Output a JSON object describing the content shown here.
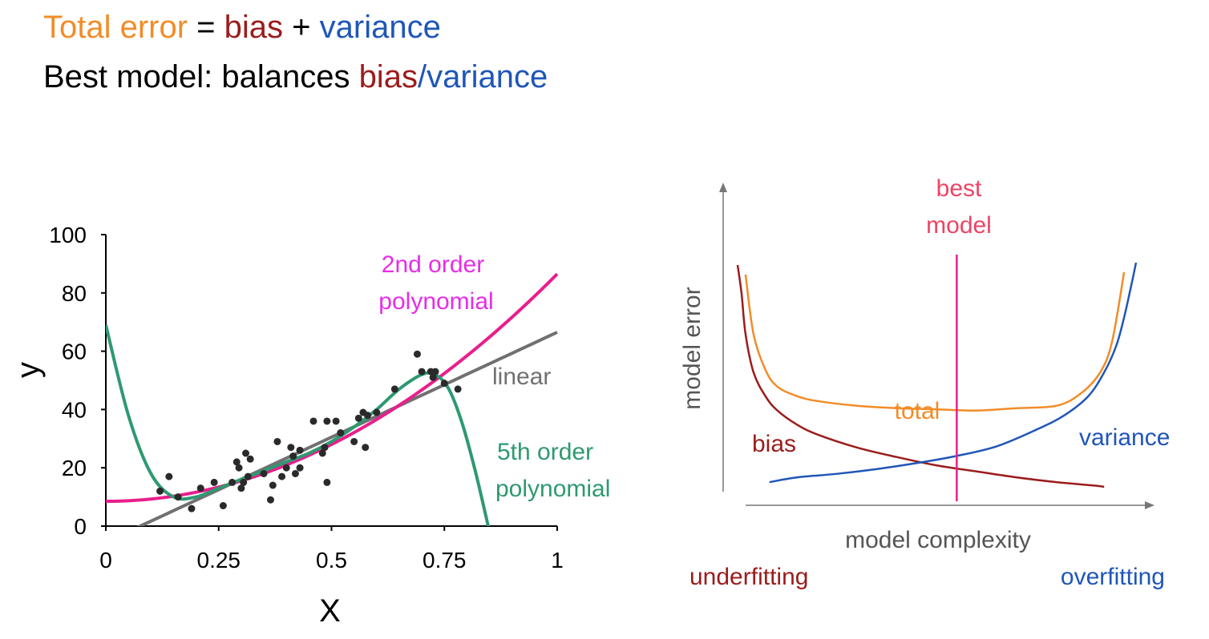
{
  "headline": {
    "line1": {
      "total": "Total error",
      "eq": " = ",
      "bias": "bias",
      "plus": " + ",
      "variance": "variance"
    },
    "line2": {
      "prefix": "Best model: balances ",
      "bias": "bias",
      "slash": "/",
      "variance": "variance"
    }
  },
  "colors": {
    "orange": "#f28c28",
    "bias": "#9b1c1c",
    "variance": "#1f56b8",
    "magenta": "#e91e8c",
    "quad_label": "#e62ee6",
    "linear": "#707070",
    "poly5": "#2e9970",
    "points": "#2a2a2a",
    "best": "#ee4466"
  },
  "chart_data": [
    {
      "type": "scatter",
      "xlabel": "X",
      "ylabel": "y",
      "xlim": [
        0,
        1
      ],
      "ylim": [
        0,
        100
      ],
      "xticks": [
        0,
        0.25,
        0.5,
        0.75,
        1
      ],
      "xtick_labels": [
        "0",
        "0.25",
        "0.5",
        "0.75",
        "1"
      ],
      "yticks": [
        0,
        20,
        40,
        60,
        80,
        100
      ],
      "ytick_labels": [
        "0",
        "20",
        "40",
        "60",
        "80",
        "100"
      ],
      "points": [
        [
          0.12,
          12
        ],
        [
          0.14,
          17
        ],
        [
          0.16,
          10
        ],
        [
          0.19,
          6
        ],
        [
          0.21,
          13
        ],
        [
          0.24,
          15
        ],
        [
          0.26,
          7
        ],
        [
          0.28,
          15
        ],
        [
          0.29,
          22
        ],
        [
          0.295,
          20
        ],
        [
          0.3,
          13
        ],
        [
          0.305,
          15
        ],
        [
          0.31,
          25
        ],
        [
          0.315,
          17
        ],
        [
          0.32,
          23
        ],
        [
          0.35,
          18
        ],
        [
          0.365,
          9
        ],
        [
          0.37,
          14
        ],
        [
          0.38,
          29
        ],
        [
          0.39,
          17
        ],
        [
          0.4,
          20
        ],
        [
          0.41,
          27
        ],
        [
          0.415,
          24
        ],
        [
          0.42,
          18
        ],
        [
          0.43,
          26
        ],
        [
          0.43,
          20
        ],
        [
          0.46,
          36
        ],
        [
          0.48,
          25
        ],
        [
          0.485,
          27
        ],
        [
          0.49,
          36
        ],
        [
          0.49,
          15
        ],
        [
          0.51,
          36
        ],
        [
          0.52,
          32
        ],
        [
          0.55,
          29
        ],
        [
          0.56,
          37
        ],
        [
          0.57,
          39
        ],
        [
          0.575,
          27
        ],
        [
          0.58,
          38
        ],
        [
          0.6,
          39
        ],
        [
          0.64,
          47
        ],
        [
          0.69,
          59
        ],
        [
          0.7,
          53
        ],
        [
          0.72,
          53
        ],
        [
          0.725,
          51
        ],
        [
          0.73,
          53
        ],
        [
          0.75,
          49
        ],
        [
          0.78,
          47
        ]
      ],
      "series": [
        {
          "name": "linear",
          "kind": "line",
          "fit": [
            -5.5,
            72
          ]
        },
        {
          "name": "2nd order polynomial",
          "kind": "line",
          "fit": [
            8.5,
            0,
            78
          ]
        },
        {
          "name": "5th order polynomial",
          "kind": "line",
          "x": [
            0.0,
            0.05,
            0.1,
            0.15,
            0.2,
            0.25,
            0.3,
            0.35,
            0.4,
            0.45,
            0.5,
            0.55,
            0.6,
            0.65,
            0.7,
            0.73,
            0.76,
            0.79,
            0.82,
            0.85
          ],
          "y": [
            69,
            38,
            18,
            10,
            10,
            13,
            16,
            19,
            22,
            25,
            29,
            34,
            40,
            47,
            52,
            52,
            47,
            35,
            18,
            -2
          ]
        }
      ],
      "annotations": {
        "poly2": [
          "2nd order",
          "polynomial"
        ],
        "linear": "linear",
        "poly5": [
          "5th order",
          "polynomial"
        ]
      }
    },
    {
      "type": "line",
      "xlabel": "model complexity",
      "ylabel": "model error",
      "series": [
        {
          "name": "bias",
          "x": [
            0.0,
            0.01,
            0.02,
            0.04,
            0.07,
            0.1,
            0.15,
            0.2,
            0.3,
            0.4,
            0.5,
            0.6,
            0.7,
            0.8,
            0.9,
            0.92
          ],
          "y": [
            0.97,
            0.85,
            0.68,
            0.52,
            0.42,
            0.36,
            0.3,
            0.26,
            0.205,
            0.165,
            0.13,
            0.105,
            0.08,
            0.06,
            0.045,
            0.04
          ]
        },
        {
          "name": "variance",
          "x": [
            0.08,
            0.15,
            0.25,
            0.35,
            0.45,
            0.55,
            0.65,
            0.75,
            0.82,
            0.88,
            0.92,
            0.95,
            0.97,
            0.99,
            1.0
          ],
          "y": [
            0.06,
            0.08,
            0.095,
            0.115,
            0.14,
            0.17,
            0.21,
            0.28,
            0.34,
            0.42,
            0.52,
            0.63,
            0.75,
            0.9,
            0.98
          ]
        },
        {
          "name": "total",
          "x": [
            0.02,
            0.04,
            0.07,
            0.1,
            0.15,
            0.2,
            0.3,
            0.4,
            0.5,
            0.6,
            0.7,
            0.8,
            0.86,
            0.91,
            0.94,
            0.97
          ],
          "y": [
            0.93,
            0.68,
            0.53,
            0.46,
            0.42,
            0.4,
            0.38,
            0.37,
            0.365,
            0.36,
            0.37,
            0.38,
            0.43,
            0.52,
            0.65,
            0.94
          ]
        }
      ],
      "best_model_x": 0.55,
      "best_label": [
        "best",
        "model"
      ],
      "annotations": {
        "total": "total",
        "bias": "bias",
        "variance": "variance",
        "underfitting": "underfitting",
        "overfitting": "overfitting"
      }
    }
  ]
}
